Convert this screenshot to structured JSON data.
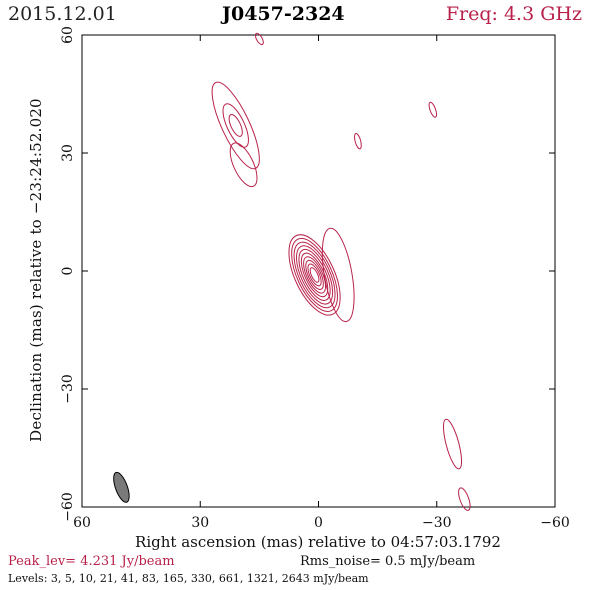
{
  "header": {
    "date": "2015.12.01",
    "source": "J0457-2324",
    "frequency": "Freq: 4.3 GHz"
  },
  "chart_data": {
    "type": "contour",
    "xlabel": "Right ascension (mas) relative to 04:57:03.1792",
    "ylabel": "Declination (mas) relative to −23:24:52.020",
    "xlim": [
      60,
      -60
    ],
    "ylim": [
      -60,
      60
    ],
    "x_ticks": [
      60,
      30,
      0,
      -30,
      -60
    ],
    "y_ticks": [
      -60,
      -30,
      0,
      30,
      60
    ],
    "x_tick_labels": [
      "60",
      "30",
      "0",
      "−30",
      "−60"
    ],
    "y_tick_labels": [
      "−60",
      "−30",
      "0",
      "30",
      "60"
    ],
    "contour_color": "#b8224a",
    "beam": {
      "x": 50,
      "y": -55,
      "major_mas": 8,
      "minor_mas": 3,
      "pa_deg": -20
    },
    "components": [
      {
        "name": "core",
        "x": 1,
        "y": -1,
        "contours": [
          {
            "a": 11,
            "b": 5,
            "pa": -25
          },
          {
            "a": 10,
            "b": 4.4,
            "pa": -25
          },
          {
            "a": 9,
            "b": 3.9,
            "pa": -25
          },
          {
            "a": 8,
            "b": 3.4,
            "pa": -25
          },
          {
            "a": 7,
            "b": 2.9,
            "pa": -25
          },
          {
            "a": 6,
            "b": 2.4,
            "pa": -25
          },
          {
            "a": 5,
            "b": 2.0,
            "pa": -25
          },
          {
            "a": 4,
            "b": 1.6,
            "pa": -25
          },
          {
            "a": 3,
            "b": 1.2,
            "pa": -25
          },
          {
            "a": 2,
            "b": 0.8,
            "pa": -25
          }
        ]
      },
      {
        "name": "core-extension",
        "x": -5,
        "y": -1,
        "contours": [
          {
            "a": 12,
            "b": 3.5,
            "pa": -10
          }
        ]
      },
      {
        "name": "north-east-blob",
        "x": 21,
        "y": 37,
        "contours": [
          {
            "a": 12,
            "b": 3.5,
            "pa": -25
          },
          {
            "a": 6,
            "b": 2.2,
            "pa": -25
          },
          {
            "a": 3,
            "b": 1.2,
            "pa": -25
          }
        ]
      },
      {
        "name": "north-east-blob-lower",
        "x": 19,
        "y": 27,
        "contours": [
          {
            "a": 6,
            "b": 2.5,
            "pa": -25
          }
        ]
      },
      {
        "name": "top-edge-fragment",
        "x": 15,
        "y": 59,
        "contours": [
          {
            "a": 1.6,
            "b": 0.7,
            "pa": -30
          }
        ]
      },
      {
        "name": "small-north-1",
        "x": -10,
        "y": 33,
        "contours": [
          {
            "a": 2,
            "b": 0.7,
            "pa": -15
          }
        ]
      },
      {
        "name": "small-north-2",
        "x": -29,
        "y": 41,
        "contours": [
          {
            "a": 2,
            "b": 0.7,
            "pa": -20
          }
        ]
      },
      {
        "name": "south-west-blob",
        "x": -34,
        "y": -44,
        "contours": [
          {
            "a": 6.5,
            "b": 1.6,
            "pa": -15
          }
        ]
      },
      {
        "name": "south-west-edge",
        "x": -37,
        "y": -58,
        "contours": [
          {
            "a": 3,
            "b": 1.1,
            "pa": -20
          }
        ]
      }
    ]
  },
  "footer": {
    "peak": "Peak_lev=  4.231 Jy/beam",
    "rms": "Rms_noise=  0.5 mJy/beam",
    "levels": "Levels:   3,    5,   10,   21,   41,   83,  165,  330,  661,  1321,  2643  mJy/beam"
  }
}
